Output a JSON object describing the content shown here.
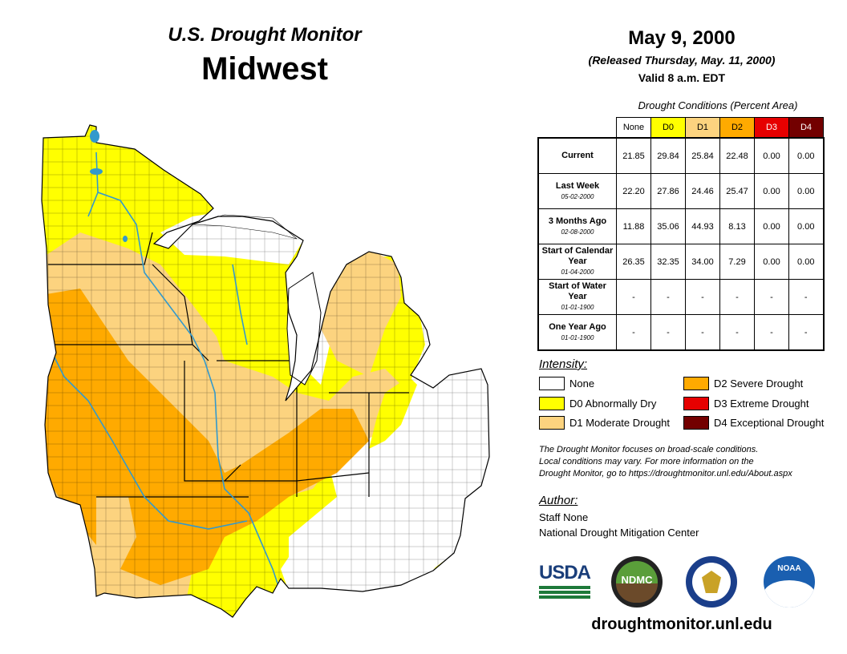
{
  "header": {
    "title": "U.S. Drought Monitor",
    "region": "Midwest"
  },
  "dates": {
    "map_date": "May 9, 2000",
    "released": "(Released Thursday, May. 11, 2000)",
    "valid": "Valid 8 a.m. EDT"
  },
  "table": {
    "caption": "Drought Conditions (Percent Area)",
    "columns": [
      {
        "label": "None",
        "color": "#ffffff",
        "text_color": "#000000"
      },
      {
        "label": "D0",
        "color": "#ffff00",
        "text_color": "#000000"
      },
      {
        "label": "D1",
        "color": "#fcd37f",
        "text_color": "#000000"
      },
      {
        "label": "D2",
        "color": "#ffaa00",
        "text_color": "#000000"
      },
      {
        "label": "D3",
        "color": "#e60000",
        "text_color": "#ffffff"
      },
      {
        "label": "D4",
        "color": "#730000",
        "text_color": "#ffffff"
      }
    ],
    "rows": [
      {
        "label": "Current",
        "sub": "",
        "values": [
          "21.85",
          "29.84",
          "25.84",
          "22.48",
          "0.00",
          "0.00"
        ]
      },
      {
        "label": "Last Week",
        "sub": "05-02-2000",
        "values": [
          "22.20",
          "27.86",
          "24.46",
          "25.47",
          "0.00",
          "0.00"
        ]
      },
      {
        "label": "3 Months Ago",
        "sub": "02-08-2000",
        "values": [
          "11.88",
          "35.06",
          "44.93",
          "8.13",
          "0.00",
          "0.00"
        ]
      },
      {
        "label": "Start of Calendar Year",
        "sub": "01-04-2000",
        "values": [
          "26.35",
          "32.35",
          "34.00",
          "7.29",
          "0.00",
          "0.00"
        ]
      },
      {
        "label": "Start of Water Year",
        "sub": "01-01-1900",
        "values": [
          "-",
          "-",
          "-",
          "-",
          "-",
          "-"
        ]
      },
      {
        "label": "One Year Ago",
        "sub": "01-01-1900",
        "values": [
          "-",
          "-",
          "-",
          "-",
          "-",
          "-"
        ]
      }
    ]
  },
  "legend": {
    "heading": "Intensity:",
    "items": [
      {
        "label": "None",
        "color": "#ffffff"
      },
      {
        "label": "D0 Abnormally Dry",
        "color": "#ffff00"
      },
      {
        "label": "D1 Moderate Drought",
        "color": "#fcd37f"
      },
      {
        "label": "D2 Severe Drought",
        "color": "#ffaa00"
      },
      {
        "label": "D3 Extreme Drought",
        "color": "#e60000"
      },
      {
        "label": "D4 Exceptional Drought",
        "color": "#730000"
      }
    ]
  },
  "note": {
    "line1": "The Drought Monitor focuses on broad-scale conditions.",
    "line2": "Local conditions may vary. For more information on the",
    "line3": "Drought Monitor, go to https://droughtmonitor.unl.edu/About.aspx"
  },
  "author": {
    "heading": "Author:",
    "name": "Staff None",
    "org": "National Drought Mitigation Center"
  },
  "logos": {
    "usda": "USDA",
    "ndmc": "NDMC",
    "noaa": "NOAA"
  },
  "footer": {
    "url": "droughtmonitor.unl.edu"
  },
  "map_colors": {
    "none": "#ffffff",
    "d0": "#ffff00",
    "d1": "#fcd37f",
    "d2": "#ffaa00",
    "water": "#3399cc",
    "lake": "#ffffff"
  }
}
